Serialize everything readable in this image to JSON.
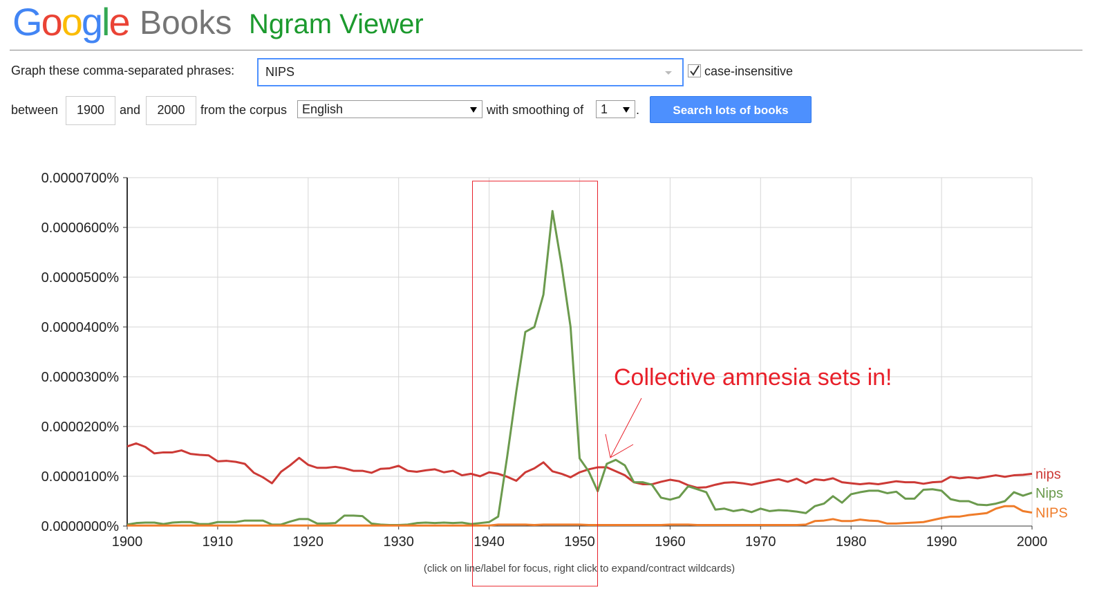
{
  "header": {
    "logo": [
      "G",
      "o",
      "o",
      "g",
      "l",
      "e"
    ],
    "books": "Books",
    "title": "Ngram Viewer"
  },
  "form": {
    "phrases_label": "Graph these comma-separated phrases:",
    "phrases": "NIPS",
    "case_insensitive": "case-insensitive",
    "between": "between",
    "start_year": "1900",
    "and": "and",
    "end_year": "2000",
    "corpus_label": "from the corpus",
    "corpus": "English",
    "smoothing_label": "with smoothing of",
    "smoothing": "1",
    "period": ".",
    "search": "Search lots of books"
  },
  "chart_data": {
    "type": "line",
    "annotation": "Collective amnesia sets in!",
    "note": "(click on line/label for focus, right click to expand/contract wildcards)",
    "xlim": [
      1900,
      2000
    ],
    "xticks": [
      1900,
      1910,
      1920,
      1930,
      1940,
      1950,
      1960,
      1970,
      1980,
      1990,
      2000
    ],
    "ylim": [
      0,
      7e-05
    ],
    "yticks": [
      {
        "value": 0,
        "label": "0.0000000%"
      },
      {
        "value": 1e-05,
        "label": "0.0000100%"
      },
      {
        "value": 2e-05,
        "label": "0.0000200%"
      },
      {
        "value": 3e-05,
        "label": "0.0000300%"
      },
      {
        "value": 4e-05,
        "label": "0.0000400%"
      },
      {
        "value": 5e-05,
        "label": "0.0000500%"
      },
      {
        "value": 6e-05,
        "label": "0.0000600%"
      },
      {
        "value": 7e-05,
        "label": "0.0000700%"
      }
    ],
    "grid": true,
    "x": [
      1900,
      1901,
      1902,
      1903,
      1904,
      1905,
      1906,
      1907,
      1908,
      1909,
      1910,
      1911,
      1912,
      1913,
      1914,
      1915,
      1916,
      1917,
      1918,
      1919,
      1920,
      1921,
      1922,
      1923,
      1924,
      1925,
      1926,
      1927,
      1928,
      1929,
      1930,
      1931,
      1932,
      1933,
      1934,
      1935,
      1936,
      1937,
      1938,
      1939,
      1940,
      1941,
      1942,
      1943,
      1944,
      1945,
      1946,
      1947,
      1948,
      1949,
      1950,
      1951,
      1952,
      1953,
      1954,
      1955,
      1956,
      1957,
      1958,
      1959,
      1960,
      1961,
      1962,
      1963,
      1964,
      1965,
      1966,
      1967,
      1968,
      1969,
      1970,
      1971,
      1972,
      1973,
      1974,
      1975,
      1976,
      1977,
      1978,
      1979,
      1980,
      1981,
      1982,
      1983,
      1984,
      1985,
      1986,
      1987,
      1988,
      1989,
      1990,
      1991,
      1992,
      1993,
      1994,
      1995,
      1996,
      1997,
      1998,
      1999,
      2000
    ],
    "series": [
      {
        "name": "nips",
        "color": "#cc3a36",
        "values": [
          1.6e-05,
          1.66e-05,
          1.59e-05,
          1.46e-05,
          1.48e-05,
          1.48e-05,
          1.52e-05,
          1.45e-05,
          1.43e-05,
          1.42e-05,
          1.3e-05,
          1.31e-05,
          1.29e-05,
          1.25e-05,
          1.07e-05,
          9.8e-06,
          8.6e-06,
          1.09e-05,
          1.22e-05,
          1.37e-05,
          1.23e-05,
          1.17e-05,
          1.17e-05,
          1.19e-05,
          1.16e-05,
          1.11e-05,
          1.11e-05,
          1.07e-05,
          1.15e-05,
          1.16e-05,
          1.21e-05,
          1.11e-05,
          1.09e-05,
          1.12e-05,
          1.14e-05,
          1.08e-05,
          1.11e-05,
          1.02e-05,
          1.05e-05,
          1e-05,
          1.08e-05,
          1.05e-05,
          9.9e-06,
          9.1e-06,
          1.08e-05,
          1.16e-05,
          1.28e-05,
          1.1e-05,
          1.05e-05,
          9.8e-06,
          1.08e-05,
          1.14e-05,
          1.18e-05,
          1.18e-05,
          1.1e-05,
          1.02e-05,
          8.8e-06,
          8.4e-06,
          8.4e-06,
          8.9e-06,
          9.3e-06,
          9e-06,
          8.2e-06,
          7.7e-06,
          7.8e-06,
          8.3e-06,
          8.7e-06,
          8.8e-06,
          8.6e-06,
          8.3e-06,
          8.7e-06,
          9.1e-06,
          9.4e-06,
          8.9e-06,
          9.5e-06,
          8.6e-06,
          9.4e-06,
          9.2e-06,
          9.6e-06,
          8.8e-06,
          8.6e-06,
          8.4e-06,
          8.6e-06,
          8.4e-06,
          8.7e-06,
          9e-06,
          8.8e-06,
          8.8e-06,
          8.5e-06,
          8.8e-06,
          8.9e-06,
          9.9e-06,
          9.6e-06,
          9.8e-06,
          9.6e-06,
          9.9e-06,
          1.02e-05,
          9.9e-06,
          1.02e-05,
          1.03e-05,
          1.05e-05
        ]
      },
      {
        "name": "Nips",
        "color": "#6b9a4d",
        "values": [
          3e-07,
          6e-07,
          7e-07,
          7e-07,
          4e-07,
          7e-07,
          8e-07,
          8e-07,
          4e-07,
          4e-07,
          8e-07,
          8e-07,
          8e-07,
          1.1e-06,
          1.1e-06,
          1.1e-06,
          3e-07,
          3e-07,
          9e-07,
          1.4e-06,
          1.4e-06,
          5e-07,
          5e-07,
          6e-07,
          2.1e-06,
          2.1e-06,
          2e-06,
          5e-07,
          3e-07,
          2e-07,
          2e-07,
          3e-07,
          6e-07,
          7e-07,
          6e-07,
          7e-07,
          6e-07,
          7e-07,
          4e-07,
          6e-07,
          8e-07,
          1.9e-06,
          1.4e-05,
          2.7e-05,
          3.9e-05,
          4e-05,
          4.65e-05,
          6.33e-05,
          5.25e-05,
          4e-05,
          1.36e-05,
          1.1e-05,
          7e-06,
          1.25e-05,
          1.33e-05,
          1.22e-05,
          8.8e-06,
          8.8e-06,
          8.3e-06,
          5.7e-06,
          5.3e-06,
          5.8e-06,
          8e-06,
          7.4e-06,
          6.8e-06,
          3.3e-06,
          3.5e-06,
          3e-06,
          3.3e-06,
          2.8e-06,
          3.5e-06,
          3e-06,
          3.2e-06,
          3.1e-06,
          2.9e-06,
          2.6e-06,
          4e-06,
          4.5e-06,
          6e-06,
          4.7e-06,
          6.4e-06,
          6.8e-06,
          7.1e-06,
          7.1e-06,
          6.6e-06,
          6.9e-06,
          5.5e-06,
          5.5e-06,
          7.3e-06,
          7.4e-06,
          7.1e-06,
          5.4e-06,
          5e-06,
          5e-06,
          4.3e-06,
          4.2e-06,
          4.5e-06,
          5e-06,
          6.8e-06,
          6.1e-06,
          6.7e-06
        ]
      },
      {
        "name": "NIPS",
        "color": "#ef7c2a",
        "values": [
          1e-07,
          1e-07,
          1e-07,
          1e-07,
          1e-07,
          1e-07,
          1e-07,
          1e-07,
          1e-07,
          1e-07,
          1e-07,
          1e-07,
          1e-07,
          1e-07,
          1e-07,
          1e-07,
          1e-07,
          1e-07,
          1e-07,
          1e-07,
          1e-07,
          1e-07,
          1e-07,
          1e-07,
          1e-07,
          1e-07,
          1e-07,
          1e-07,
          1e-07,
          1e-07,
          1e-07,
          1e-07,
          1e-07,
          1e-07,
          1e-07,
          1e-07,
          1e-07,
          1e-07,
          1e-07,
          1e-07,
          1e-07,
          3e-07,
          3e-07,
          3e-07,
          3e-07,
          2e-07,
          3e-07,
          3e-07,
          3e-07,
          3e-07,
          3e-07,
          2e-07,
          2e-07,
          2e-07,
          2e-07,
          2e-07,
          2e-07,
          2e-07,
          2e-07,
          2e-07,
          3e-07,
          3e-07,
          3e-07,
          2e-07,
          2e-07,
          2e-07,
          2e-07,
          2e-07,
          2e-07,
          2e-07,
          2e-07,
          2e-07,
          2e-07,
          2e-07,
          2e-07,
          3e-07,
          1e-06,
          1.1e-06,
          1.4e-06,
          1e-06,
          1e-06,
          1.3e-06,
          1.1e-06,
          1e-06,
          5e-07,
          5e-07,
          6e-07,
          7e-07,
          8e-07,
          1.2e-06,
          1.6e-06,
          1.9e-06,
          1.9e-06,
          2.2e-06,
          2.4e-06,
          2.6e-06,
          3.5e-06,
          4e-06,
          4e-06,
          3e-06,
          2.7e-06
        ]
      }
    ]
  }
}
